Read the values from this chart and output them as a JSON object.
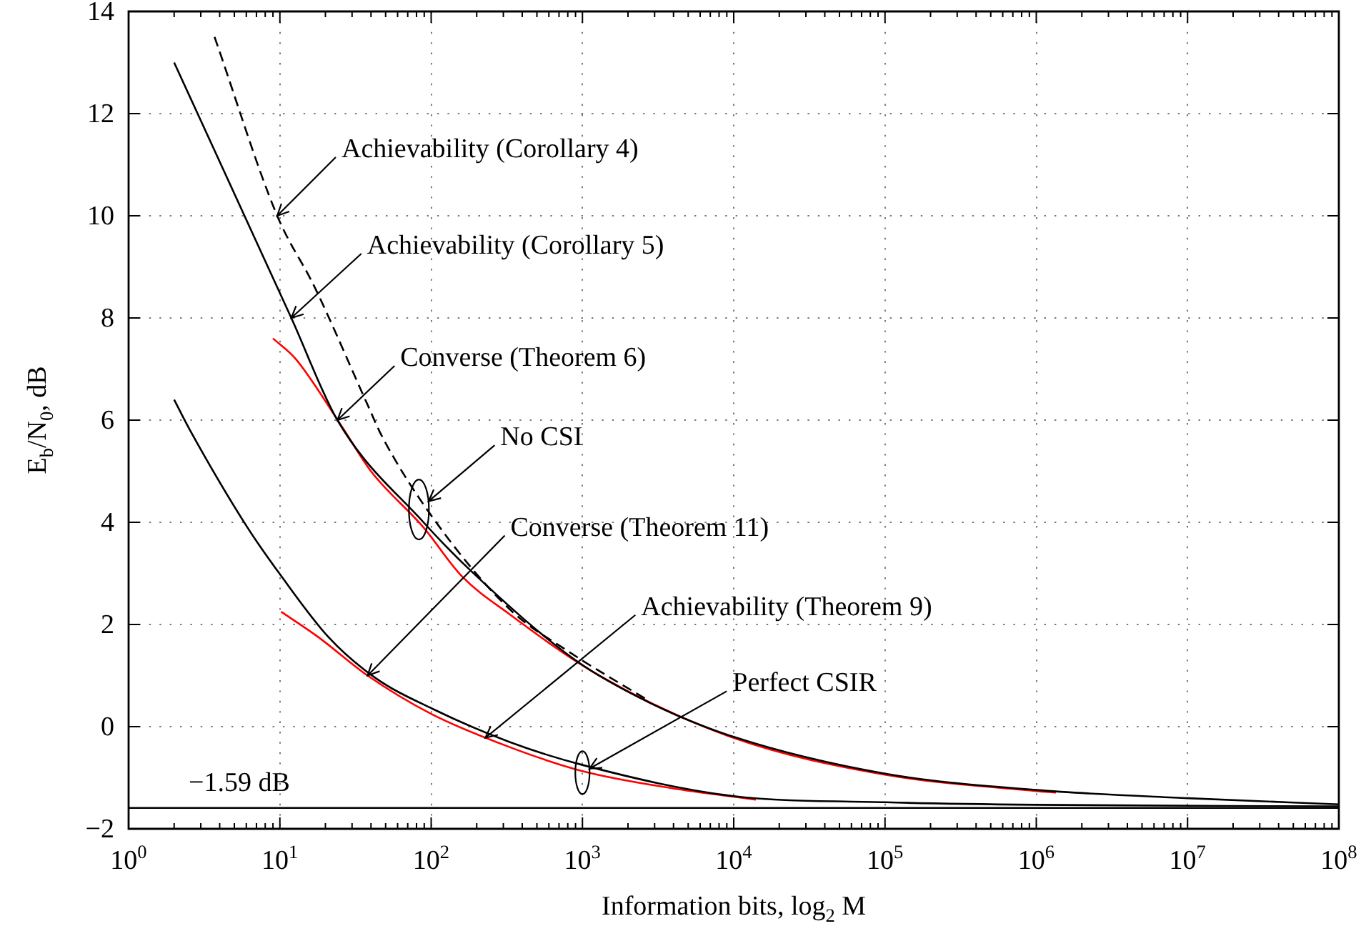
{
  "chart_data": {
    "type": "line",
    "xlabel": "Information bits, log$_{2}$ M",
    "ylabel": "E$_{b}$/N$_{0}$, dB",
    "log": "x",
    "grid": true,
    "marker": "none",
    "xlim": [
      1,
      100000000
    ],
    "ylim": [
      -2,
      14
    ],
    "xticks": [
      {
        "value": 1,
        "label": "10$^{0}$"
      },
      {
        "value": 2,
        "label": null
      },
      {
        "value": 3,
        "label": null
      },
      {
        "value": 4,
        "label": null
      },
      {
        "value": 5,
        "label": null
      },
      {
        "value": 6,
        "label": null
      },
      {
        "value": 7,
        "label": null
      },
      {
        "value": 8,
        "label": null
      },
      {
        "value": 9,
        "label": null
      },
      {
        "value": 10,
        "label": "10$^{1}$"
      },
      {
        "value": 20,
        "label": null
      },
      {
        "value": 30,
        "label": null
      },
      {
        "value": 40,
        "label": null
      },
      {
        "value": 50,
        "label": null
      },
      {
        "value": 60,
        "label": null
      },
      {
        "value": 70,
        "label": null
      },
      {
        "value": 80,
        "label": null
      },
      {
        "value": 90,
        "label": null
      },
      {
        "value": 100,
        "label": "10$^{2}$"
      },
      {
        "value": 200,
        "label": null
      },
      {
        "value": 300,
        "label": null
      },
      {
        "value": 400,
        "label": null
      },
      {
        "value": 500,
        "label": null
      },
      {
        "value": 600,
        "label": null
      },
      {
        "value": 700,
        "label": null
      },
      {
        "value": 800,
        "label": null
      },
      {
        "value": 900,
        "label": null
      },
      {
        "value": 1000,
        "label": "10$^{3}$"
      },
      {
        "value": 2000,
        "label": null
      },
      {
        "value": 3000,
        "label": null
      },
      {
        "value": 4000,
        "label": null
      },
      {
        "value": 5000,
        "label": null
      },
      {
        "value": 6000,
        "label": null
      },
      {
        "value": 7000,
        "label": null
      },
      {
        "value": 8000,
        "label": null
      },
      {
        "value": 9000,
        "label": null
      },
      {
        "value": 10000,
        "label": "10$^{4}$"
      },
      {
        "value": 20000,
        "label": null
      },
      {
        "value": 30000,
        "label": null
      },
      {
        "value": 40000,
        "label": null
      },
      {
        "value": 50000,
        "label": null
      },
      {
        "value": 60000,
        "label": null
      },
      {
        "value": 70000,
        "label": null
      },
      {
        "value": 80000,
        "label": null
      },
      {
        "value": 90000,
        "label": null
      },
      {
        "value": 100000,
        "label": "10$^{5}$"
      },
      {
        "value": 200000,
        "label": null
      },
      {
        "value": 300000,
        "label": null
      },
      {
        "value": 400000,
        "label": null
      },
      {
        "value": 500000,
        "label": null
      },
      {
        "value": 600000,
        "label": null
      },
      {
        "value": 700000,
        "label": null
      },
      {
        "value": 800000,
        "label": null
      },
      {
        "value": 900000,
        "label": null
      },
      {
        "value": 1000000,
        "label": "10$^{6}$"
      },
      {
        "value": 2000000,
        "label": null
      },
      {
        "value": 3000000,
        "label": null
      },
      {
        "value": 4000000,
        "label": null
      },
      {
        "value": 5000000,
        "label": null
      },
      {
        "value": 6000000,
        "label": null
      },
      {
        "value": 7000000,
        "label": null
      },
      {
        "value": 8000000,
        "label": null
      },
      {
        "value": 9000000,
        "label": null
      },
      {
        "value": 10000000,
        "label": "10$^{7}$"
      },
      {
        "value": 20000000,
        "label": null
      },
      {
        "value": 30000000,
        "label": null
      },
      {
        "value": 40000000,
        "label": null
      },
      {
        "value": 50000000,
        "label": null
      },
      {
        "value": 60000000,
        "label": null
      },
      {
        "value": 70000000,
        "label": null
      },
      {
        "value": 80000000,
        "label": null
      },
      {
        "value": 90000000,
        "label": null
      },
      {
        "value": 100000000,
        "label": "10$^{8}$"
      }
    ],
    "yticks": [
      {
        "value": -2,
        "label": "−2"
      },
      0,
      2,
      4,
      6,
      8,
      10,
      12,
      14
    ],
    "series": [
      {
        "color": "#000000",
        "line_style": "dashed",
        "x": [
          3.7,
          9.6,
          17,
          38,
          47,
          102,
          330,
          830,
          2770
        ],
        "values": [
          13.5,
          10.0,
          8.6,
          6.3,
          5.7,
          4.1,
          2.3,
          1.45,
          0.5
        ]
      },
      {
        "color": "#000000",
        "x": [
          2,
          11.9,
          24,
          89,
          183,
          900,
          2770,
          10000,
          100000,
          1000000,
          10000000,
          100000000
        ],
        "values": [
          13.0,
          8.0,
          6.0,
          4.0,
          3.05,
          1.3,
          0.47,
          -0.2,
          -0.92,
          -1.24,
          -1.4,
          -1.52
        ]
      },
      {
        "color": "#ff0000",
        "x": [
          9,
          12.7,
          26,
          40,
          89,
          159,
          330,
          1290,
          10000,
          100000,
          1000000,
          1350000
        ],
        "values": [
          7.6,
          7.2,
          5.85,
          5.0,
          3.9,
          2.95,
          2.2,
          1.0,
          -0.22,
          -0.94,
          -1.26,
          -1.29
        ]
      },
      {
        "color": "#000000",
        "x": [
          2,
          2.55,
          6.1,
          10.2,
          21,
          43,
          102,
          330,
          1000,
          10000,
          100000,
          1000000,
          100000000
        ],
        "values": [
          6.4,
          5.8,
          3.9,
          2.95,
          1.75,
          0.95,
          0.35,
          -0.3,
          -0.75,
          -1.36,
          -1.48,
          -1.53,
          -1.56
        ]
      },
      {
        "color": "#ff0000",
        "x": [
          10.2,
          18,
          38,
          100,
          330,
          1000,
          3800,
          14000
        ],
        "values": [
          2.25,
          1.75,
          1.0,
          0.25,
          -0.4,
          -0.87,
          -1.2,
          -1.43
        ]
      }
    ],
    "ref_lines": [
      {
        "axis": "y",
        "value": -1.59,
        "label": "−1.59 dB",
        "color": "#000000"
      }
    ],
    "annotations": [
      {
        "text": "Achievability (Corollary 4)",
        "x": 9.6,
        "y": 10.0
      },
      {
        "text": "Achievability (Corollary 5)",
        "x": 11.9,
        "y": 8.0
      },
      {
        "text": "Converse (Theorem 6)",
        "x": 24,
        "y": 6.0
      },
      {
        "text": "No CSI",
        "x": 83,
        "y": 4.25
      },
      {
        "text": "Converse (Theorem 11)",
        "x": 38,
        "y": 1.0
      },
      {
        "text": "Achievability (Theorem 9)",
        "x": 228,
        "y": -0.22
      },
      {
        "text": "Perfect CSIR",
        "x": 1000,
        "y": -0.9
      }
    ]
  }
}
